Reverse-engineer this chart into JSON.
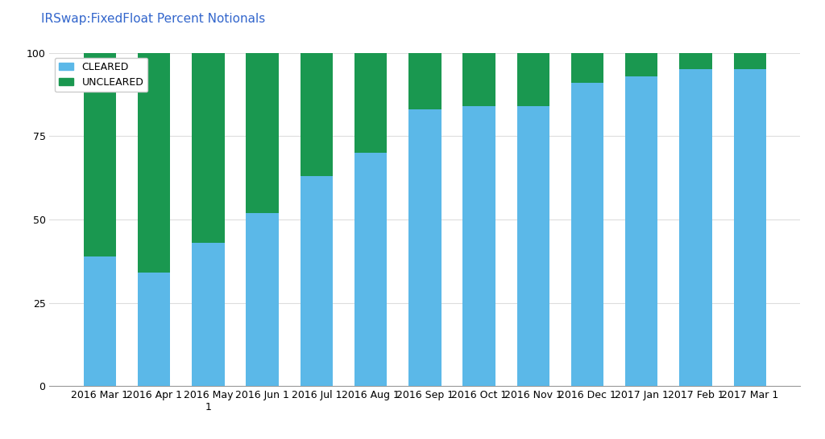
{
  "title": "IRSwap:FixedFloat Percent Notionals",
  "categories": [
    "2016 Mar 1",
    "2016 Apr 1",
    "2016 May\n1",
    "2016 Jun 1",
    "2016 Jul 1",
    "2016 Aug 1",
    "2016 Sep 1",
    "2016 Oct 1",
    "2016 Nov 1",
    "2016 Dec 1",
    "2017 Jan 1",
    "2017 Feb 1",
    "2017 Mar 1"
  ],
  "cleared": [
    39,
    34,
    43,
    52,
    63,
    70,
    83,
    84,
    84,
    91,
    93,
    95,
    95
  ],
  "uncleared": [
    61,
    66,
    57,
    48,
    37,
    30,
    17,
    16,
    16,
    9,
    7,
    5,
    5
  ],
  "cleared_color": "#5BB8E8",
  "uncleared_color": "#1A9850",
  "legend_cleared": "CLEARED",
  "legend_uncleared": "UNCLEARED",
  "ylim": [
    0,
    100
  ],
  "yticks": [
    0,
    25,
    50,
    75,
    100
  ],
  "background_color": "#FFFFFF",
  "plot_bg_color": "#FFFFFF",
  "border_color": "#CCCCCC",
  "title_color": "#3366CC",
  "title_fontsize": 11,
  "tick_fontsize": 9,
  "legend_fontsize": 9
}
